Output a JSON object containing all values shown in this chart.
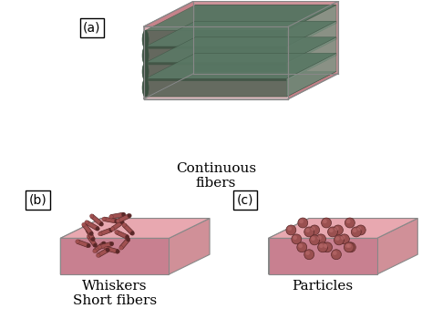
{
  "bg_color": "#ffffff",
  "box_pink_front": "#d4909a",
  "box_pink_top": "#c07880",
  "box_pink_side": "#b86870",
  "box_pink_floor": "#e0a0a8",
  "box_edge_color": "#888888",
  "fiber_green_body": "#7a9080",
  "fiber_green_top": "#5a7865",
  "fiber_green_dark": "#3a5040",
  "fiber_dark_body": "#8a6060",
  "fiber_dark_end": "#3d2828",
  "whisker_body": "#a05050",
  "whisker_dark": "#5a2828",
  "particle_body": "#9a5050",
  "particle_dark": "#5a2828",
  "particle_highlight": "#c07070",
  "label_fontsize": 11,
  "tag_fontsize": 10,
  "title_a": "Continuous\nfibers",
  "title_b": "Whiskers\nShort fibers",
  "title_c": "Particles",
  "tag_a": "(a)",
  "tag_b": "(b)",
  "tag_c": "(c)"
}
